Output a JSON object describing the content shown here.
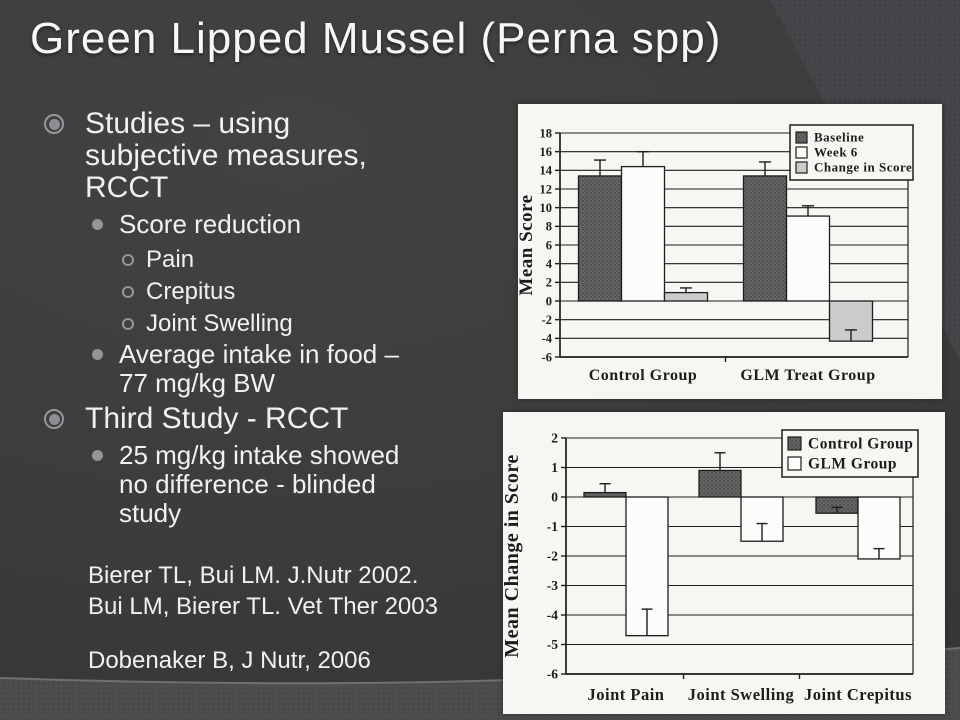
{
  "slide": {
    "title": "Green Lipped Mussel (Perna spp)",
    "bullets": [
      {
        "level": 1,
        "text": "Studies – using\nsubjective measures,\nRCCT"
      },
      {
        "level": 2,
        "text": "Score reduction"
      },
      {
        "level": 3,
        "text": "Pain"
      },
      {
        "level": 3,
        "text": "Crepitus"
      },
      {
        "level": 3,
        "text": "Joint Swelling"
      },
      {
        "level": 2,
        "text": "Average intake in food –\n77 mg/kg BW"
      },
      {
        "level": 1,
        "text": "Third Study - RCCT"
      },
      {
        "level": 2,
        "text": "25 mg/kg intake showed\nno difference - blinded\nstudy"
      }
    ],
    "references": [
      "Bierer TL, Bui LM. J.Nutr 2002.\nBui LM, Bierer TL. Vet Ther 2003",
      "Dobenaker B, J Nutr, 2006"
    ]
  },
  "colors": {
    "background": "#3d3d3d",
    "footer_band": "#4b4b4b",
    "text": "#f1f1f1",
    "bullet_marker": "#96979a",
    "chart_panel": "#f7f6f2",
    "chart_ink": "#1d1d1d",
    "bar_dark": "#5e5e5e",
    "bar_white": "#fcfcfa",
    "bar_light": "#cbcbcb"
  },
  "chart_data": [
    {
      "type": "bar",
      "title": "",
      "xlabel": "",
      "ylabel": "Mean Score",
      "ylim": [
        -6,
        18
      ],
      "ytick_step": 2,
      "grid": true,
      "legend_position": "top-right",
      "categories": [
        "Control Group",
        "GLM Treat Group"
      ],
      "series": [
        {
          "name": "Baseline",
          "style": "dark",
          "values": [
            13.4,
            13.4
          ],
          "error_tops": [
            15.1,
            14.9
          ]
        },
        {
          "name": "Week 6",
          "style": "white",
          "values": [
            14.4,
            9.1
          ],
          "error_tops": [
            16.0,
            10.2
          ]
        },
        {
          "name": "Change in Score",
          "style": "light",
          "values": [
            0.9,
            -4.3
          ],
          "error_tops": [
            1.4,
            -3.1
          ]
        }
      ]
    },
    {
      "type": "bar",
      "title": "",
      "xlabel": "",
      "ylabel": "Mean Change in Score",
      "ylim": [
        -6,
        2
      ],
      "ytick_step": 1,
      "grid": true,
      "legend_position": "top-right",
      "categories": [
        "Joint Pain",
        "Joint Swelling",
        "Joint Crepitus"
      ],
      "series": [
        {
          "name": "Control Group",
          "style": "dark",
          "values": [
            0.15,
            0.9,
            -0.55
          ],
          "error_tops": [
            0.45,
            1.5,
            -0.35
          ]
        },
        {
          "name": "GLM Group",
          "style": "white",
          "values": [
            -4.7,
            -1.5,
            -2.1
          ],
          "error_tops": [
            -3.8,
            -0.9,
            -1.75
          ]
        }
      ]
    }
  ]
}
